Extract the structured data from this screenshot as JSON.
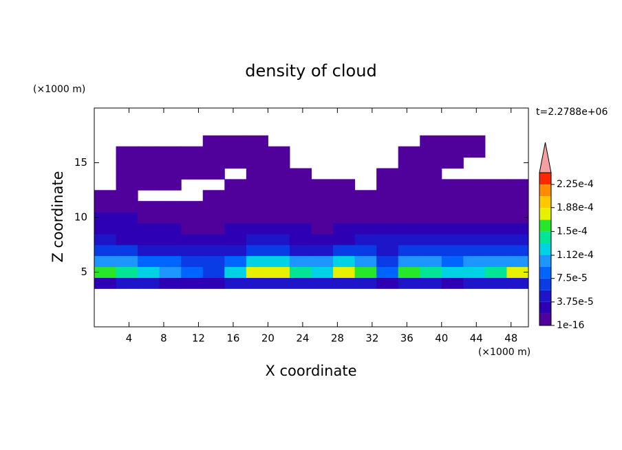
{
  "chart_data": {
    "type": "contour",
    "title": "density of cloud",
    "xlabel": "X coordinate",
    "ylabel": "Z coordinate",
    "x_unit": "(×1000 m)",
    "y_unit": "(×1000 m)",
    "time_label": "t=2.2788e+06",
    "xlim": [
      0,
      50
    ],
    "ylim": [
      0,
      20
    ],
    "xticks": [
      4,
      8,
      12,
      16,
      20,
      24,
      28,
      32,
      36,
      40,
      44,
      48
    ],
    "yticks": [
      5,
      10,
      15
    ],
    "x": [
      1.25,
      3.75,
      6.25,
      8.75,
      11.25,
      13.75,
      16.25,
      18.75,
      21.25,
      23.75,
      26.25,
      28.75,
      31.25,
      33.75,
      36.25,
      38.75,
      41.25,
      43.75,
      46.25,
      48.75
    ],
    "z": [
      4,
      5,
      6,
      7,
      8,
      9,
      10,
      11,
      12,
      13,
      14,
      15,
      16,
      17
    ],
    "values": [
      [
        3e-05,
        4e-05,
        4e-05,
        3.5e-05,
        3e-05,
        3e-05,
        4e-05,
        4.5e-05,
        4.5e-05,
        4e-05,
        4e-05,
        4.5e-05,
        4.5e-05,
        3e-05,
        4e-05,
        4e-05,
        3.5e-05,
        4e-05,
        4e-05,
        4.5e-05
      ],
      [
        0.000155,
        0.000145,
        0.00012,
        0.000105,
        8e-05,
        7e-05,
        0.00013,
        0.000175,
        0.00017,
        0.00014,
        0.00013,
        0.00017,
        0.00016,
        9e-05,
        0.00015,
        0.000145,
        0.000125,
        0.00013,
        0.00014,
        0.00017
      ],
      [
        0.00011,
        0.0001,
        9e-05,
        8e-05,
        7e-05,
        6.5e-05,
        9e-05,
        0.00012,
        0.000115,
        0.0001,
        9.5e-05,
        0.000115,
        0.00011,
        7e-05,
        0.000105,
        0.0001,
        9e-05,
        9.5e-05,
        0.0001,
        0.00011
      ],
      [
        6e-05,
        6e-05,
        5.5e-05,
        5e-05,
        5e-05,
        4.5e-05,
        5.5e-05,
        6e-05,
        6e-05,
        5.5e-05,
        5.5e-05,
        6e-05,
        6e-05,
        5e-05,
        7e-05,
        7e-05,
        6.5e-05,
        6.5e-05,
        7e-05,
        7e-05
      ],
      [
        4e-05,
        3.5e-05,
        3e-05,
        3e-05,
        3e-05,
        3e-05,
        3.5e-05,
        4e-05,
        4e-05,
        3.5e-05,
        3e-05,
        3.5e-05,
        4e-05,
        4e-05,
        5e-05,
        5.5e-05,
        5e-05,
        5e-05,
        5.5e-05,
        5e-05
      ],
      [
        2.5e-05,
        2e-05,
        2e-05,
        2e-05,
        1.5e-05,
        1.5e-05,
        2e-05,
        2e-05,
        2e-05,
        2e-05,
        1.5e-05,
        2e-05,
        2.5e-05,
        2.5e-05,
        3e-05,
        3e-05,
        3e-05,
        2.5e-05,
        3e-05,
        3e-05
      ],
      [
        2e-05,
        2e-05,
        1.5e-05,
        1e-05,
        1e-05,
        1e-05,
        1.2e-05,
        1.2e-05,
        1e-05,
        1e-05,
        1e-05,
        1.2e-05,
        1.2e-05,
        1e-05,
        1.5e-05,
        1.5e-05,
        1.2e-05,
        1.2e-05,
        1.5e-05,
        1.5e-05
      ],
      [
        8e-06,
        8e-06,
        8e-06,
        8e-06,
        8e-06,
        8e-06,
        8e-06,
        8e-06,
        8e-06,
        8e-06,
        8e-06,
        8e-06,
        8e-06,
        8e-06,
        8e-06,
        8e-06,
        8e-06,
        8e-06,
        8e-06,
        8e-06
      ],
      [
        5e-06,
        5e-06,
        null,
        null,
        null,
        5e-06,
        5e-06,
        5e-06,
        5e-06,
        5e-06,
        5e-06,
        5e-06,
        5e-06,
        5e-06,
        5e-06,
        5e-06,
        5e-06,
        5e-06,
        5e-06,
        5e-06
      ],
      [
        null,
        4e-06,
        4e-06,
        4e-06,
        null,
        null,
        4e-06,
        4e-06,
        4e-06,
        4e-06,
        4e-06,
        4e-06,
        null,
        4e-06,
        4e-06,
        4e-06,
        4e-06,
        4e-06,
        4e-06,
        4e-06
      ],
      [
        null,
        3e-06,
        3e-06,
        3e-06,
        3e-06,
        3e-06,
        null,
        3e-06,
        3e-06,
        3e-06,
        null,
        null,
        null,
        3e-06,
        3e-06,
        3e-06,
        null,
        null,
        null,
        null
      ],
      [
        null,
        3e-06,
        3e-06,
        3e-06,
        3e-06,
        3e-06,
        3e-06,
        3e-06,
        3e-06,
        null,
        null,
        null,
        null,
        null,
        3e-06,
        3e-06,
        3e-06,
        null,
        null,
        null
      ],
      [
        null,
        2e-06,
        2e-06,
        2e-06,
        2e-06,
        2e-06,
        2e-06,
        2e-06,
        2e-06,
        null,
        null,
        null,
        null,
        null,
        2e-06,
        2e-06,
        2e-06,
        2e-06,
        null,
        null
      ],
      [
        null,
        null,
        null,
        null,
        null,
        1e-06,
        1e-06,
        1e-06,
        null,
        null,
        null,
        null,
        null,
        null,
        null,
        1e-06,
        1e-06,
        1e-06,
        null,
        null
      ]
    ],
    "levels": [
      1e-16,
      1.875e-05,
      3.75e-05,
      5.625e-05,
      7.5e-05,
      9.375e-05,
      0.0001125,
      0.00013125,
      0.00015,
      0.00016875,
      0.0001875,
      0.00020625,
      0.000225,
      0.00024375
    ],
    "colors": [
      "#50009b",
      "#2d00b4",
      "#1e14c8",
      "#0a3ce6",
      "#0064ff",
      "#1e96ff",
      "#00d2e6",
      "#00e696",
      "#28e628",
      "#e6f000",
      "#ffc800",
      "#ff8c00",
      "#ff2800"
    ],
    "extend_color": "#f4a0a0",
    "cbar_ticks": [
      1e-16,
      {
        "value": 3.75e-05,
        "label": "3.75e-5"
      },
      {
        "value": 7.5e-05,
        "label": "7.5e-5"
      },
      {
        "value": 0.000112,
        "label": "1.12e-4"
      },
      {
        "value": 0.00015,
        "label": "1.5e-4"
      },
      {
        "value": 0.000188,
        "label": "1.88e-4"
      },
      {
        "value": 0.000225,
        "label": "2.25e-4"
      }
    ]
  }
}
